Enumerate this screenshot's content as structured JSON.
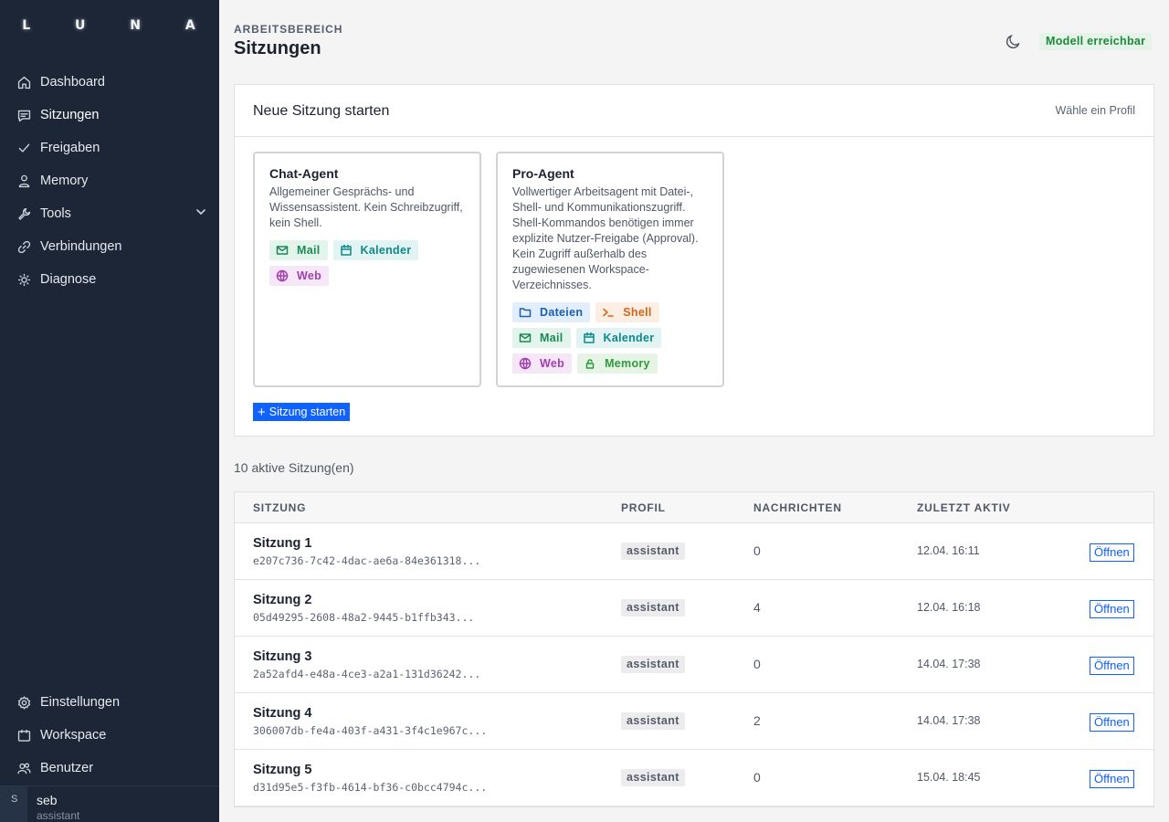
{
  "app": {
    "logo": "L U N A"
  },
  "sidebar": {
    "items": [
      {
        "label": "Dashboard",
        "icon": "home-icon"
      },
      {
        "label": "Sitzungen",
        "icon": "chat-icon"
      },
      {
        "label": "Freigaben",
        "icon": "check-icon"
      },
      {
        "label": "Memory",
        "icon": "person-icon"
      },
      {
        "label": "Tools",
        "icon": "wrench-icon"
      },
      {
        "label": "Verbindungen",
        "icon": "link-icon"
      },
      {
        "label": "Diagnose",
        "icon": "bulb-icon"
      }
    ],
    "bottom_items": [
      {
        "label": "Einstellungen",
        "icon": "gear-icon"
      },
      {
        "label": "Workspace",
        "icon": "calendar-icon"
      },
      {
        "label": "Benutzer",
        "icon": "users-icon"
      }
    ],
    "user": {
      "initial": "S",
      "name": "seb",
      "role": "assistant"
    }
  },
  "header": {
    "eyebrow": "ARBEITSBEREICH",
    "title": "Sitzungen",
    "status": "Modell erreichbar",
    "status_color": "#1d8a3a"
  },
  "new_session": {
    "title": "Neue Sitzung starten",
    "hint": "Wähle ein Profil",
    "profiles": [
      {
        "name": "Chat-Agent",
        "description": "Allgemeiner Gesprächs- und Wissensassistent. Kein Schreibzugriff, kein Shell.",
        "tags": [
          "Mail",
          "Kalender",
          "Web"
        ]
      },
      {
        "name": "Pro-Agent",
        "description": "Vollwertiger Arbeitsagent mit Datei-, Shell- und Kommunikationszugriff. Shell-Kommandos benötigen immer explizite Nutzer-Freigabe (Approval). Kein Zugriff außerhalb des zugewiesenen Workspace-Verzeichnisses.",
        "tags": [
          "Dateien",
          "Shell",
          "Mail",
          "Kalender",
          "Web",
          "Memory"
        ]
      }
    ],
    "start_label": "Sitzung starten"
  },
  "sessions": {
    "count_label": "10 aktive Sitzung(en)",
    "columns": [
      "SITZUNG",
      "PROFIL",
      "NACHRICHTEN",
      "ZULETZT AKTIV"
    ],
    "open_label": "Öffnen",
    "rows": [
      {
        "name": "Sitzung 1",
        "id": "e207c736-7c42-4dac-ae6a-84e361318...",
        "profile": "assistant",
        "messages": "0",
        "last": "12.04. 16:11"
      },
      {
        "name": "Sitzung 2",
        "id": "05d49295-2608-48a2-9445-b1ffb343...",
        "profile": "assistant",
        "messages": "4",
        "last": "12.04. 16:18"
      },
      {
        "name": "Sitzung 3",
        "id": "2a52afd4-e48a-4ce3-a2a1-131d36242...",
        "profile": "assistant",
        "messages": "0",
        "last": "14.04. 17:38"
      },
      {
        "name": "Sitzung 4",
        "id": "306007db-fe4a-403f-a431-3f4c1e967c...",
        "profile": "assistant",
        "messages": "2",
        "last": "14.04. 17:38"
      },
      {
        "name": "Sitzung 5",
        "id": "d31d95e5-f3fb-4614-bf36-c0bcc4794c...",
        "profile": "assistant",
        "messages": "0",
        "last": "15.04. 18:45"
      }
    ]
  }
}
